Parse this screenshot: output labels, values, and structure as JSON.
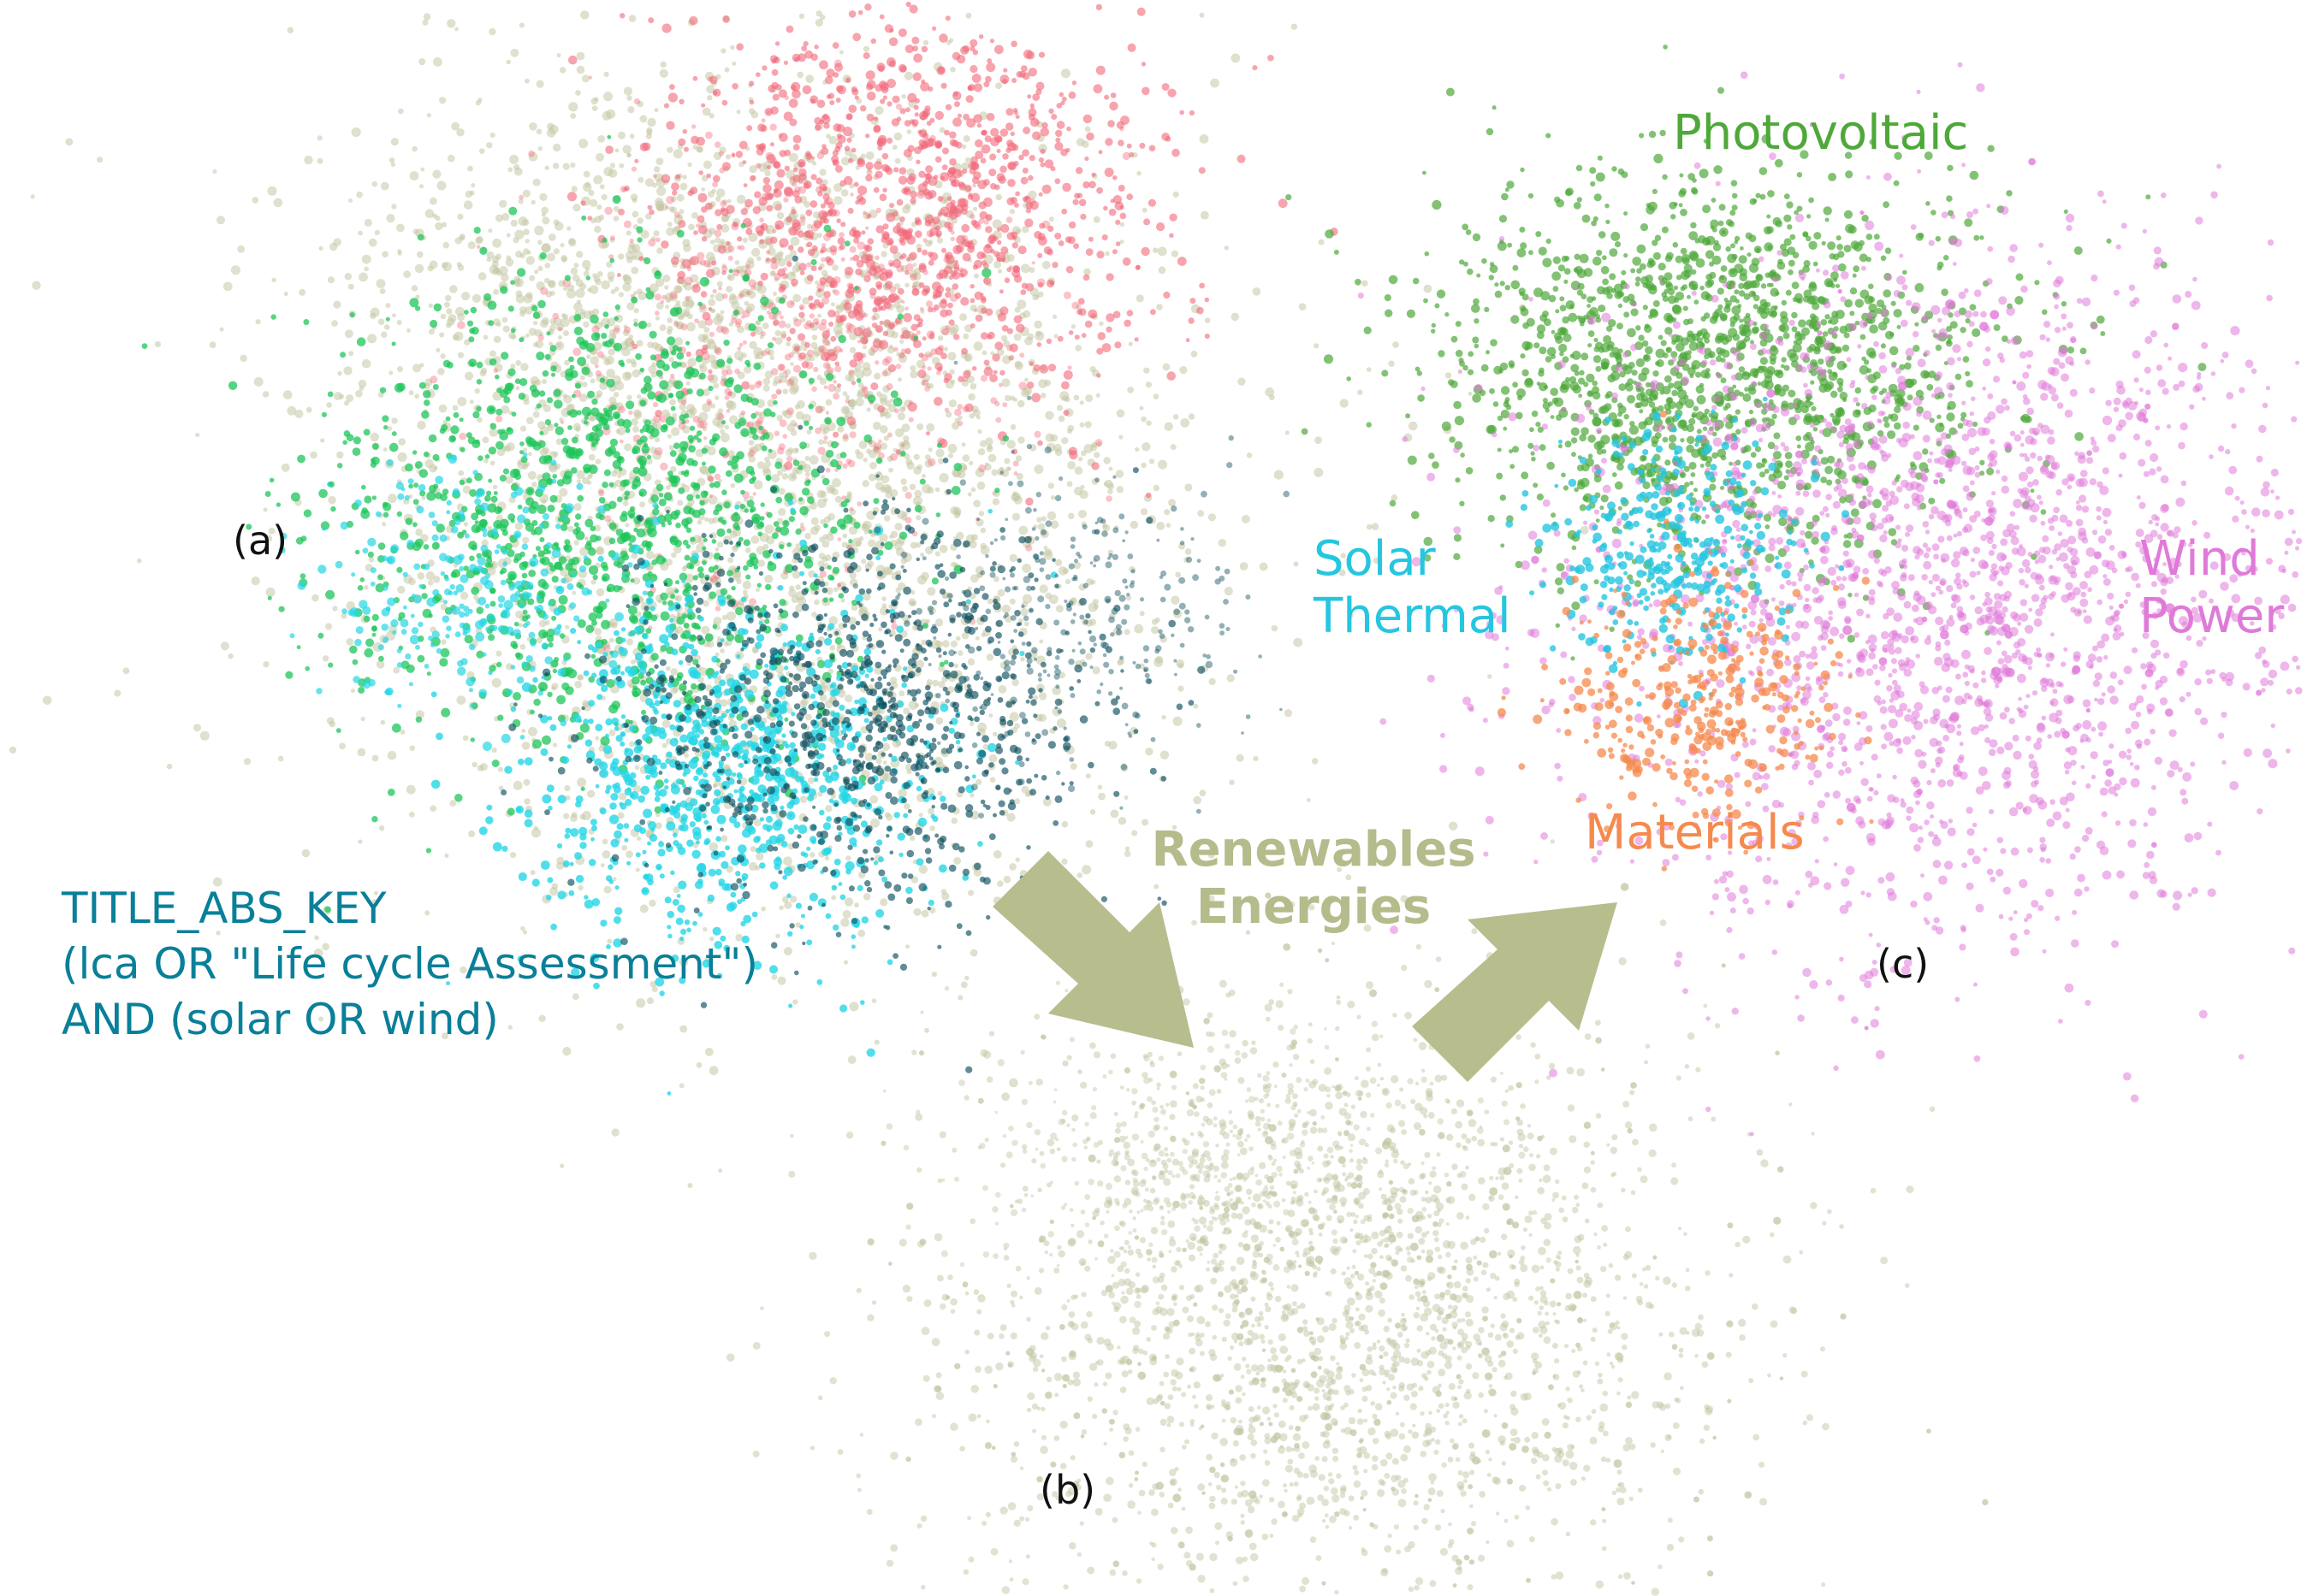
{
  "labels": {
    "panel_a": "(a)",
    "panel_b": "(b)",
    "panel_c": "(c)",
    "query": "TITLE_ABS_KEY\n(lca OR \"Life cycle Assessment\")\n AND (solar OR wind)",
    "renewables": "Renewables\nEnergies",
    "photovoltaic": "Photovoltaic",
    "solar_thermal": "Solar\nThermal",
    "wind_power": "Wind\nPower",
    "materials": "Materials"
  },
  "colors": {
    "query": "#0a7f99",
    "renewables": "#b5bb8a",
    "photovoltaic": "#4ea83a",
    "solar_thermal": "#25c6e0",
    "wind_power": "#e07ad8",
    "materials": "#f58a4e",
    "arrow": "#b7bd8c",
    "network_red": "#f26878",
    "network_green": "#1ec65a",
    "network_teal": "#0d4f5e",
    "network_khaki": "#c4c6a4"
  },
  "icons": {
    "arrow_a_to_b": "arrow-down-right",
    "arrow_b_to_c": "arrow-up-right"
  }
}
